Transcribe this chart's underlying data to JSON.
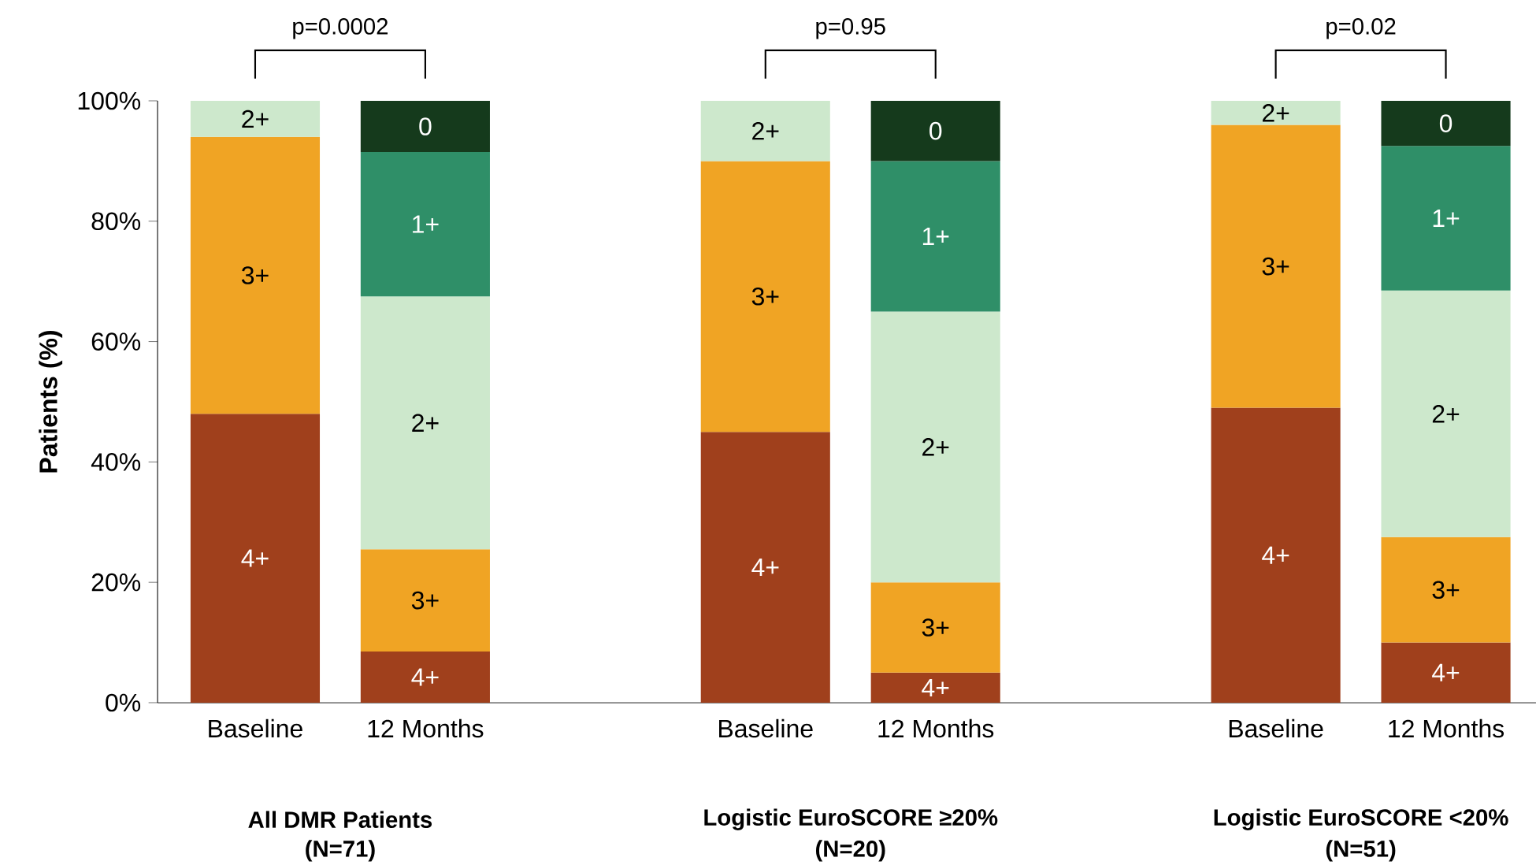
{
  "chart_data": {
    "type": "bar",
    "stacked": true,
    "ylabel": "Patients (%)",
    "categories": [
      "Baseline",
      "12 Months",
      null,
      "Baseline",
      "12 Months",
      null,
      "Baseline",
      "12 Months"
    ],
    "ylim": [
      0,
      100
    ],
    "yticks": [
      {
        "value": 0,
        "label": "0%"
      },
      {
        "value": 20,
        "label": "20%"
      },
      {
        "value": 40,
        "label": "40%"
      },
      {
        "value": 60,
        "label": "60%"
      },
      {
        "value": 80,
        "label": "80%"
      },
      {
        "value": 100,
        "label": "100%"
      }
    ],
    "series": [
      {
        "name": "4+",
        "color": "#a0401c",
        "values": [
          48,
          8.5,
          null,
          45,
          5,
          null,
          49,
          10
        ]
      },
      {
        "name": "3+",
        "color": "#f0a424",
        "values": [
          46,
          17,
          null,
          45,
          15,
          null,
          47,
          17.5
        ]
      },
      {
        "name": "2+",
        "color": "#cde8cc",
        "values": [
          6,
          42,
          null,
          10,
          45,
          null,
          4,
          41
        ]
      },
      {
        "name": "1+",
        "color": "#2f8f68",
        "values": [
          null,
          24,
          null,
          null,
          25,
          null,
          null,
          24
        ]
      },
      {
        "name": "0",
        "color": "#153a1c",
        "values": [
          null,
          8.5,
          null,
          null,
          10,
          null,
          null,
          7.5
        ]
      }
    ],
    "annotations": [
      "p=0.0002",
      "p=0.95",
      "p=0.02",
      "All DMR Patients",
      "(N=71)",
      "Logistic EuroSCORE ≥20%",
      "(N=20)",
      "Logistic EuroSCORE <20%",
      "(N=51)"
    ]
  }
}
